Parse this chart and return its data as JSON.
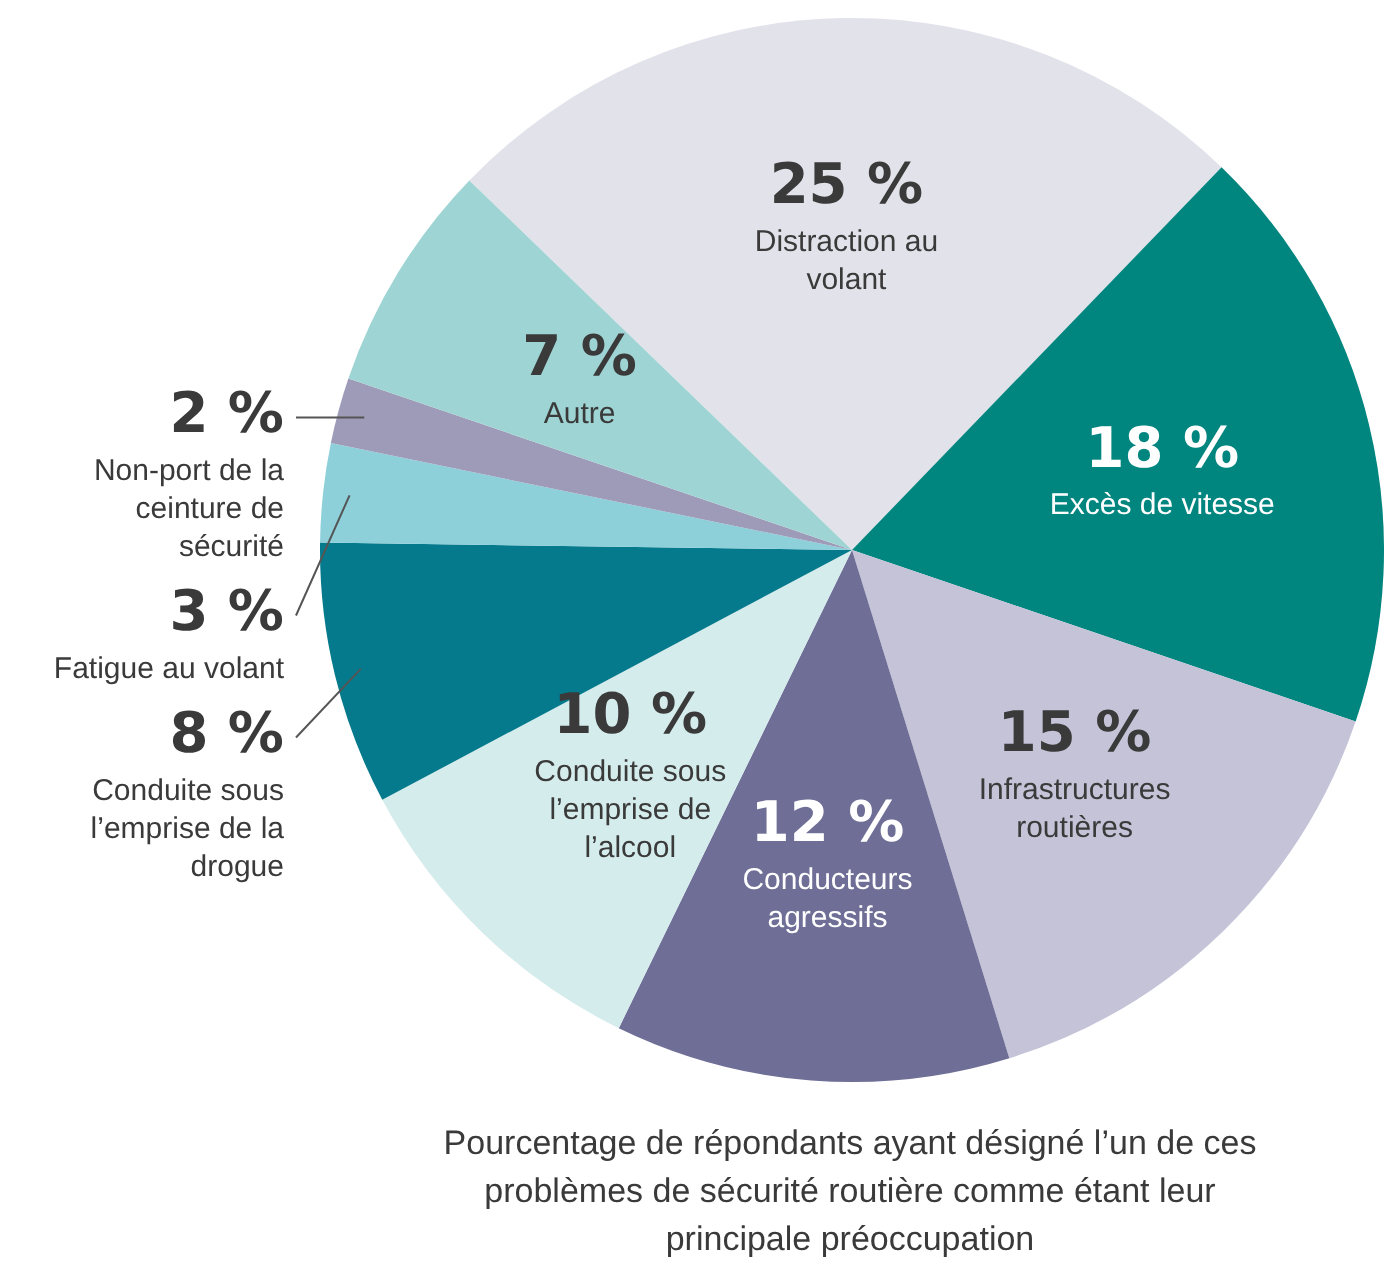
{
  "chart_data": {
    "type": "pie",
    "categories": [
      "Distraction au volant",
      "Excès de vitesse",
      "Infrastructures routières",
      "Conducteurs agressifs",
      "Conduite sous l’emprise de l’alcool",
      "Conduite sous l’emprise de la drogue",
      "Fatigue au volant",
      "Non-port de la ceinture de sécurité",
      "Autre"
    ],
    "values": [
      25,
      18,
      15,
      12,
      10,
      8,
      3,
      2,
      7
    ],
    "value_labels": [
      "25 %",
      "18 %",
      "15 %",
      "12 %",
      "10 %",
      "8 %",
      "3 %",
      "2 %",
      "7 %"
    ],
    "colors": [
      "#e2e2ea",
      "#00857f",
      "#c4c3d8",
      "#6e6e96",
      "#d5ecec",
      "#047a8c",
      "#8dd0da",
      "#9e9bb8",
      "#9fd4d4"
    ],
    "legend": false,
    "annotations": [
      "Pourcentage de répondants ayant désigné l’un de ces problèmes de sécurité routière comme étant leur principale préoccupation"
    ]
  }
}
